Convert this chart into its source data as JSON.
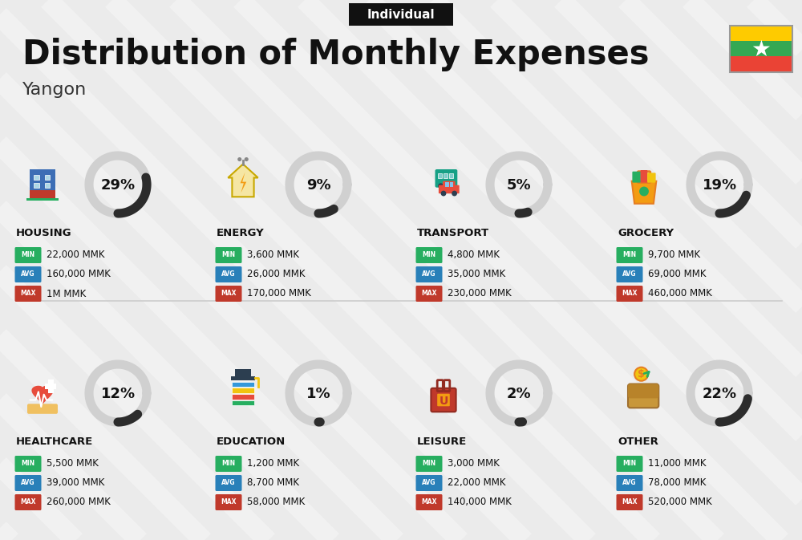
{
  "title": "Distribution of Monthly Expenses",
  "subtitle": "Individual",
  "city": "Yangon",
  "bg_color": "#ebebeb",
  "categories": [
    {
      "name": "HOUSING",
      "pct": 29,
      "icon_type": "housing",
      "min": "22,000 MMK",
      "avg": "160,000 MMK",
      "max": "1M MMK",
      "row": 0,
      "col": 0
    },
    {
      "name": "ENERGY",
      "pct": 9,
      "icon_type": "energy",
      "min": "3,600 MMK",
      "avg": "26,000 MMK",
      "max": "170,000 MMK",
      "row": 0,
      "col": 1
    },
    {
      "name": "TRANSPORT",
      "pct": 5,
      "icon_type": "transport",
      "min": "4,800 MMK",
      "avg": "35,000 MMK",
      "max": "230,000 MMK",
      "row": 0,
      "col": 2
    },
    {
      "name": "GROCERY",
      "pct": 19,
      "icon_type": "grocery",
      "min": "9,700 MMK",
      "avg": "69,000 MMK",
      "max": "460,000 MMK",
      "row": 0,
      "col": 3
    },
    {
      "name": "HEALTHCARE",
      "pct": 12,
      "icon_type": "healthcare",
      "min": "5,500 MMK",
      "avg": "39,000 MMK",
      "max": "260,000 MMK",
      "row": 1,
      "col": 0
    },
    {
      "name": "EDUCATION",
      "pct": 1,
      "icon_type": "education",
      "min": "1,200 MMK",
      "avg": "8,700 MMK",
      "max": "58,000 MMK",
      "row": 1,
      "col": 1
    },
    {
      "name": "LEISURE",
      "pct": 2,
      "icon_type": "leisure",
      "min": "3,000 MMK",
      "avg": "22,000 MMK",
      "max": "140,000 MMK",
      "row": 1,
      "col": 2
    },
    {
      "name": "OTHER",
      "pct": 22,
      "icon_type": "other",
      "min": "11,000 MMK",
      "avg": "78,000 MMK",
      "max": "520,000 MMK",
      "row": 1,
      "col": 3
    }
  ],
  "color_min": "#27ae60",
  "color_avg": "#2980b9",
  "color_max": "#c0392b",
  "arc_dark": "#2c2c2c",
  "arc_light": "#d0d0d0",
  "flag_colors": [
    "#FECB00",
    "#34A853",
    "#EA4335"
  ],
  "stripe_color": "#ffffff",
  "stripe_alpha": 0.35
}
